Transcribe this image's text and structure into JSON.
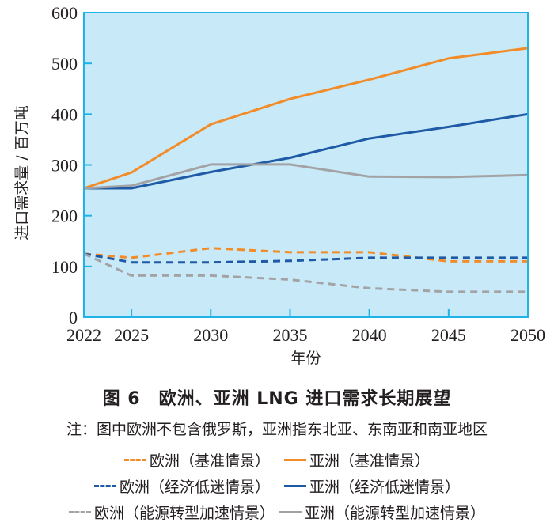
{
  "chart_data": {
    "type": "line",
    "title": "图 6　欧洲、亚洲 LNG 进口需求长期展望",
    "note": "注：图中欧洲不包含俄罗斯，亚洲指东北亚、东南亚和南亚地区",
    "xlabel": "年份",
    "ylabel": "进口需求量 / 百万吨",
    "x": [
      2022,
      2025,
      2030,
      2035,
      2040,
      2045,
      2050
    ],
    "x_tick_labels": [
      "2022",
      "2025",
      "2030",
      "2035",
      "2040",
      "2045",
      "2050"
    ],
    "ylim": [
      0,
      600
    ],
    "y_ticks": [
      0,
      100,
      200,
      300,
      400,
      500,
      600
    ],
    "y_tick_labels": [
      "0",
      "100",
      "200",
      "300",
      "400",
      "500",
      "600"
    ],
    "grid": false,
    "background_color": "#c8e9f8",
    "axis_color": "#1fb3e8",
    "legend_position": "bottom",
    "series": [
      {
        "name": "欧洲（基准情景）",
        "style": "dashed",
        "color": "#f28c28",
        "values": [
          125,
          117,
          136,
          128,
          128,
          110,
          110
        ]
      },
      {
        "name": "亚洲（基准情景）",
        "style": "solid",
        "color": "#f28c28",
        "values": [
          254,
          285,
          380,
          430,
          468,
          510,
          530
        ]
      },
      {
        "name": "欧洲（经济低迷情景）",
        "style": "dashed",
        "color": "#1f5aa6",
        "values": [
          125,
          108,
          108,
          111,
          117,
          117,
          117
        ]
      },
      {
        "name": "亚洲（经济低迷情景）",
        "style": "solid",
        "color": "#1f5aa6",
        "values": [
          254,
          254,
          286,
          314,
          352,
          375,
          400
        ]
      },
      {
        "name": "欧洲（能源转型加速情景）",
        "style": "dashed",
        "color": "#a3a3a5",
        "values": [
          125,
          82,
          82,
          74,
          57,
          50,
          50
        ]
      },
      {
        "name": "亚洲（能源转型加速情景）",
        "style": "solid",
        "color": "#a3a3a5",
        "values": [
          254,
          259,
          301,
          301,
          277,
          276,
          280
        ]
      }
    ]
  }
}
